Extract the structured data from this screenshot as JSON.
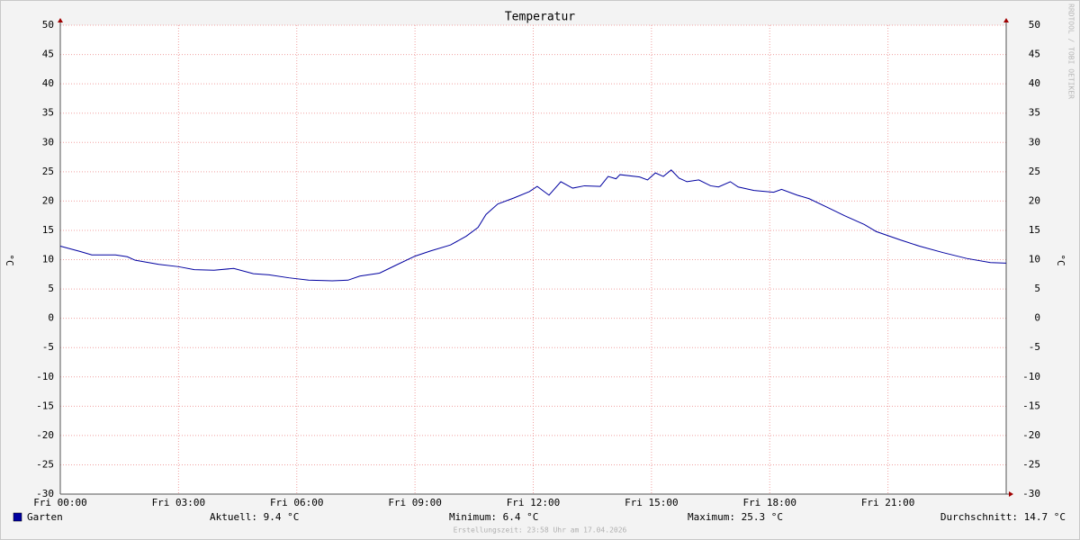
{
  "chart_data": {
    "type": "line",
    "title": "Temperatur",
    "y_label": "°C",
    "y2_label": "°C",
    "watermark": "RRDTOOL / TOBI OETIKER",
    "footer": "Erstellungszeit: 23:58 Uhr am 17.04.2026",
    "xlim": [
      0,
      24
    ],
    "xticks": [
      {
        "value": 0,
        "label": "Fri 00:00"
      },
      {
        "value": 3,
        "label": "Fri 03:00"
      },
      {
        "value": 6,
        "label": "Fri 06:00"
      },
      {
        "value": 9,
        "label": "Fri 09:00"
      },
      {
        "value": 12,
        "label": "Fri 12:00"
      },
      {
        "value": 15,
        "label": "Fri 15:00"
      },
      {
        "value": 18,
        "label": "Fri 18:00"
      },
      {
        "value": 21,
        "label": "Fri 21:00"
      }
    ],
    "ylim": [
      -30,
      50
    ],
    "yticks": [
      -30,
      -25,
      -20,
      -15,
      -10,
      -5,
      0,
      5,
      10,
      15,
      20,
      25,
      30,
      35,
      40,
      45,
      50
    ],
    "grid": true,
    "x": [
      0,
      0.5,
      0.8,
      1.4,
      1.7,
      1.9,
      2.5,
      3,
      3.4,
      3.9,
      4.4,
      4.9,
      5.3,
      5.8,
      6.3,
      6.9,
      7.3,
      7.6,
      8.1,
      8.5,
      9,
      9.4,
      9.9,
      10.3,
      10.6,
      10.8,
      11.1,
      11.5,
      11.9,
      12.1,
      12.4,
      12.7,
      13,
      13.3,
      13.7,
      13.9,
      14.1,
      14.2,
      14.7,
      14.9,
      15.1,
      15.3,
      15.5,
      15.7,
      15.9,
      16.2,
      16.5,
      16.7,
      17,
      17.2,
      17.6,
      18.1,
      18.3,
      18.7,
      19,
      19.5,
      19.9,
      20.4,
      20.7,
      21.3,
      21.8,
      22.4,
      23,
      23.6,
      24
    ],
    "series": [
      {
        "name": "Garten",
        "color": "#0000a0",
        "values": [
          12.3,
          11.4,
          10.8,
          10.8,
          10.5,
          9.9,
          9.2,
          8.8,
          8.3,
          8.2,
          8.5,
          7.6,
          7.4,
          6.9,
          6.5,
          6.4,
          6.5,
          7.2,
          7.7,
          9.0,
          10.6,
          11.5,
          12.5,
          14.0,
          15.5,
          17.7,
          19.5,
          20.5,
          21.6,
          22.5,
          21.0,
          23.3,
          22.2,
          22.6,
          22.5,
          24.2,
          23.8,
          24.5,
          24.1,
          23.6,
          24.8,
          24.2,
          25.3,
          23.9,
          23.3,
          23.6,
          22.6,
          22.4,
          23.3,
          22.4,
          21.8,
          21.5,
          22.0,
          21.0,
          20.4,
          18.8,
          17.5,
          16.0,
          14.8,
          13.4,
          12.3,
          11.2,
          10.2,
          9.5,
          9.4
        ]
      }
    ],
    "stats": [
      "Aktuell: 9.4 °C",
      "Minimum: 6.4 °C",
      "Maximum: 25.3 °C",
      "Durchschnitt: 14.7 °C"
    ]
  }
}
